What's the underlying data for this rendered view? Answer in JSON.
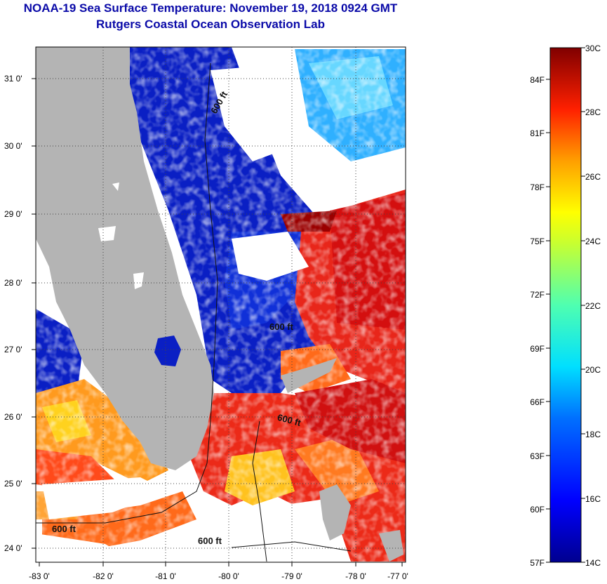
{
  "header": {
    "title": "NOAA-19 Sea Surface Temperature:  November 19, 2018 0924 GMT",
    "subtitle": "Rutgers Coastal Ocean Observation Lab"
  },
  "map": {
    "lat_ticks": [
      "31 0'",
      "30 0'",
      "29 0'",
      "28 0'",
      "27 0'",
      "26 0'",
      "25 0'",
      "24 0'"
    ],
    "lon_ticks": [
      "-83 0'",
      "-82 0'",
      "-81 0'",
      "-80 0'",
      "-79 0'",
      "-78 0'",
      "-77 0'"
    ],
    "isobath_labels": [
      "600 ft",
      "600 ft",
      "600 ft",
      "600 ft",
      "600 ft"
    ],
    "colors": {
      "land": "#b4b4b4",
      "cloud": "#ffffff",
      "cold": "#0018c8",
      "warm": "#e8261a"
    }
  },
  "colorbar": {
    "celsius_labels": [
      "30C",
      "28C",
      "26C",
      "24C",
      "22C",
      "20C",
      "18C",
      "16C",
      "14C"
    ],
    "fahrenheit_labels": [
      "84F",
      "81F",
      "78F",
      "75F",
      "72F",
      "69F",
      "66F",
      "63F",
      "60F",
      "57F"
    ]
  }
}
